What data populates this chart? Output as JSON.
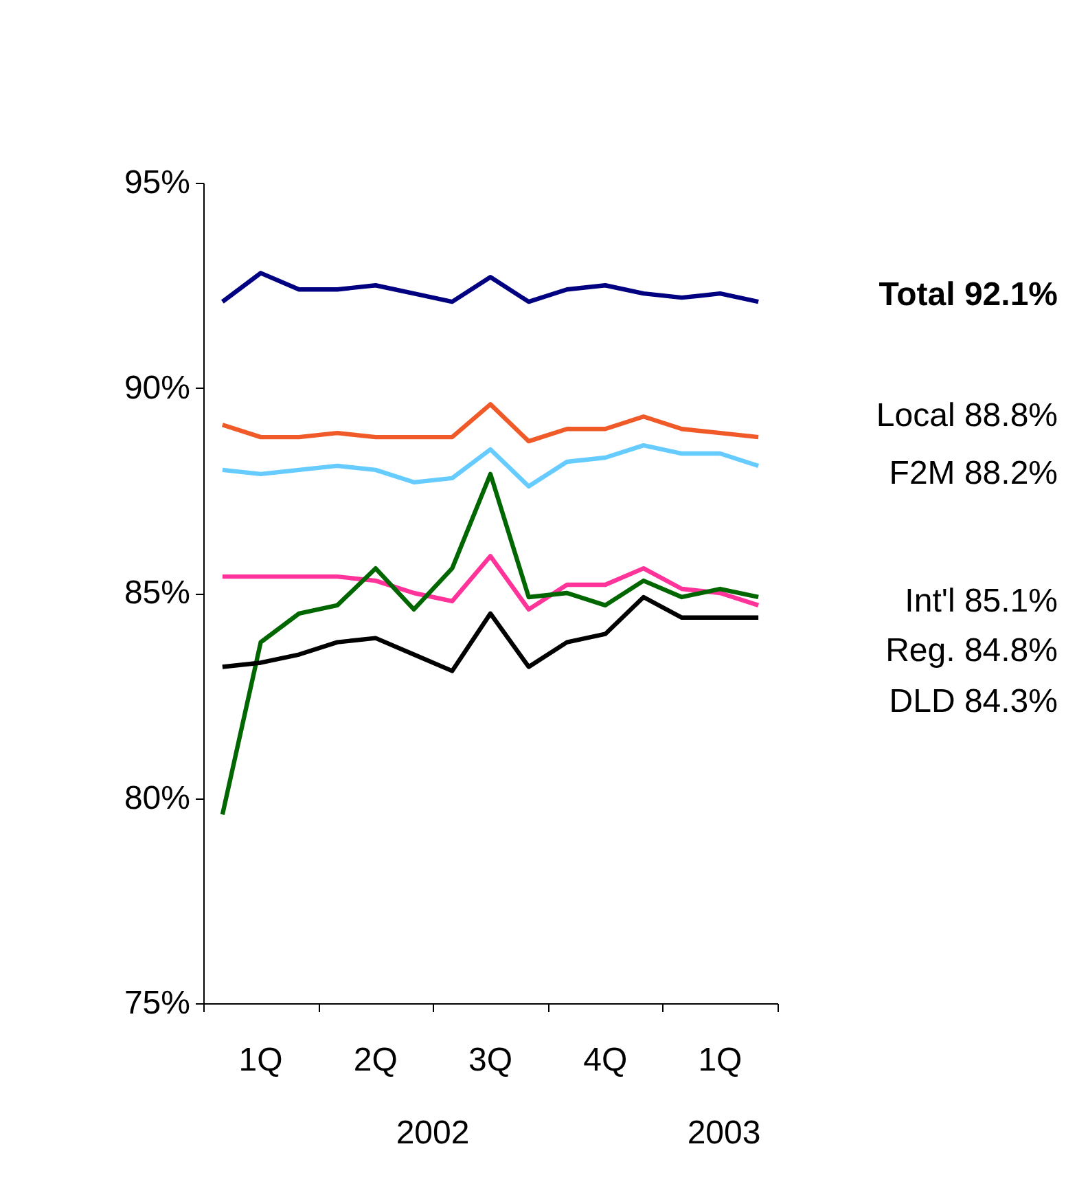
{
  "chart_data": {
    "type": "line",
    "categories": [
      null,
      "1Q",
      null,
      null,
      "2Q",
      null,
      null,
      "3Q",
      null,
      null,
      "4Q",
      null,
      null,
      "1Q",
      null
    ],
    "ylim": [
      75,
      95
    ],
    "yticks": [
      {
        "value": 75,
        "label": "75%"
      },
      {
        "value": 80,
        "label": "80%"
      },
      {
        "value": 85,
        "label": "85%"
      },
      {
        "value": 90,
        "label": "90%"
      },
      {
        "value": 95,
        "label": "95%"
      }
    ],
    "annotations": [
      "2002",
      "2003",
      "Total 92.1%",
      "Local  88.8%",
      "F2M  88.2%",
      "Int'l  85.1%",
      "Reg. 84.8%",
      "DLD 84.3%"
    ],
    "series": [
      {
        "color": "#000080",
        "values": [
          92.1,
          92.8,
          92.4,
          92.4,
          92.5,
          92.3,
          92.1,
          92.7,
          92.1,
          92.4,
          92.5,
          92.3,
          92.2,
          92.3,
          92.1
        ]
      },
      {
        "color": "#f05a28",
        "values": [
          89.1,
          88.8,
          88.8,
          88.9,
          88.8,
          88.8,
          88.8,
          89.6,
          88.7,
          89.0,
          89.0,
          89.3,
          89.0,
          88.9,
          88.8
        ]
      },
      {
        "color": "#66ccff",
        "values": [
          88.0,
          87.9,
          88.0,
          88.1,
          88.0,
          87.7,
          87.8,
          88.5,
          87.6,
          88.2,
          88.3,
          88.6,
          88.4,
          88.4,
          88.1
        ]
      },
      {
        "color": "#ff3399",
        "values": [
          85.4,
          85.4,
          85.4,
          85.4,
          85.3,
          85.0,
          84.8,
          85.9,
          84.6,
          85.2,
          85.2,
          85.6,
          85.1,
          85.0,
          84.7
        ]
      },
      {
        "color": "#006600",
        "values": [
          79.6,
          83.8,
          84.5,
          84.7,
          85.6,
          84.6,
          85.6,
          87.9,
          84.9,
          85.0,
          84.7,
          85.3,
          84.9,
          85.1,
          84.9
        ]
      },
      {
        "color": "#000000",
        "values": [
          83.2,
          83.3,
          83.5,
          83.8,
          83.9,
          83.5,
          83.1,
          84.5,
          83.2,
          83.8,
          84.0,
          84.9,
          84.4,
          84.4,
          84.4
        ]
      }
    ]
  }
}
